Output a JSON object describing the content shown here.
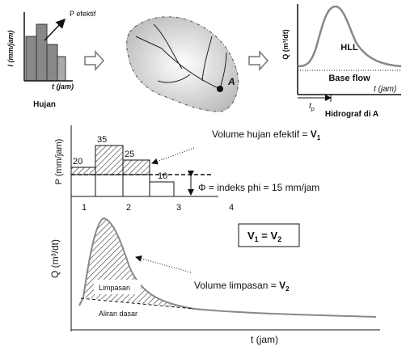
{
  "top": {
    "p_efektif": "P efektif",
    "rain_y_label": "I (mm/jam)",
    "rain_x_label": "t (jam)",
    "rain_caption": "Hujan",
    "outlet": "A",
    "hydro_y_label": "Q (m³/dt)",
    "hll": "HLL",
    "base_flow": "Base flow",
    "hydro_x_label": "t (jam)",
    "tp": "t",
    "tp_sub": "p",
    "hydro_caption": "Hidrograf di A"
  },
  "hyetograph": {
    "y_label": "P (mm/jam)",
    "bars": [
      20,
      35,
      25,
      10
    ],
    "x_labels": [
      "1",
      "2",
      "3",
      "4"
    ],
    "phi": 15,
    "phi_label": "Φ = indeks phi = 15 mm/jam",
    "annotation": "Volume hujan efektif = ",
    "annotation_var": "V",
    "annotation_sub": "1"
  },
  "hydrograph": {
    "y_label": "Q (m³/dt)",
    "x_label": "t (jam)",
    "runoff": "Limpasan",
    "baseflow": "Aliran dasar",
    "annotation": "Volume limpasan = ",
    "annotation_var": "V",
    "annotation_sub": "2",
    "equation": {
      "left": "V",
      "left_sub": "1",
      "middle": " = V",
      "right_sub": "2"
    }
  }
}
